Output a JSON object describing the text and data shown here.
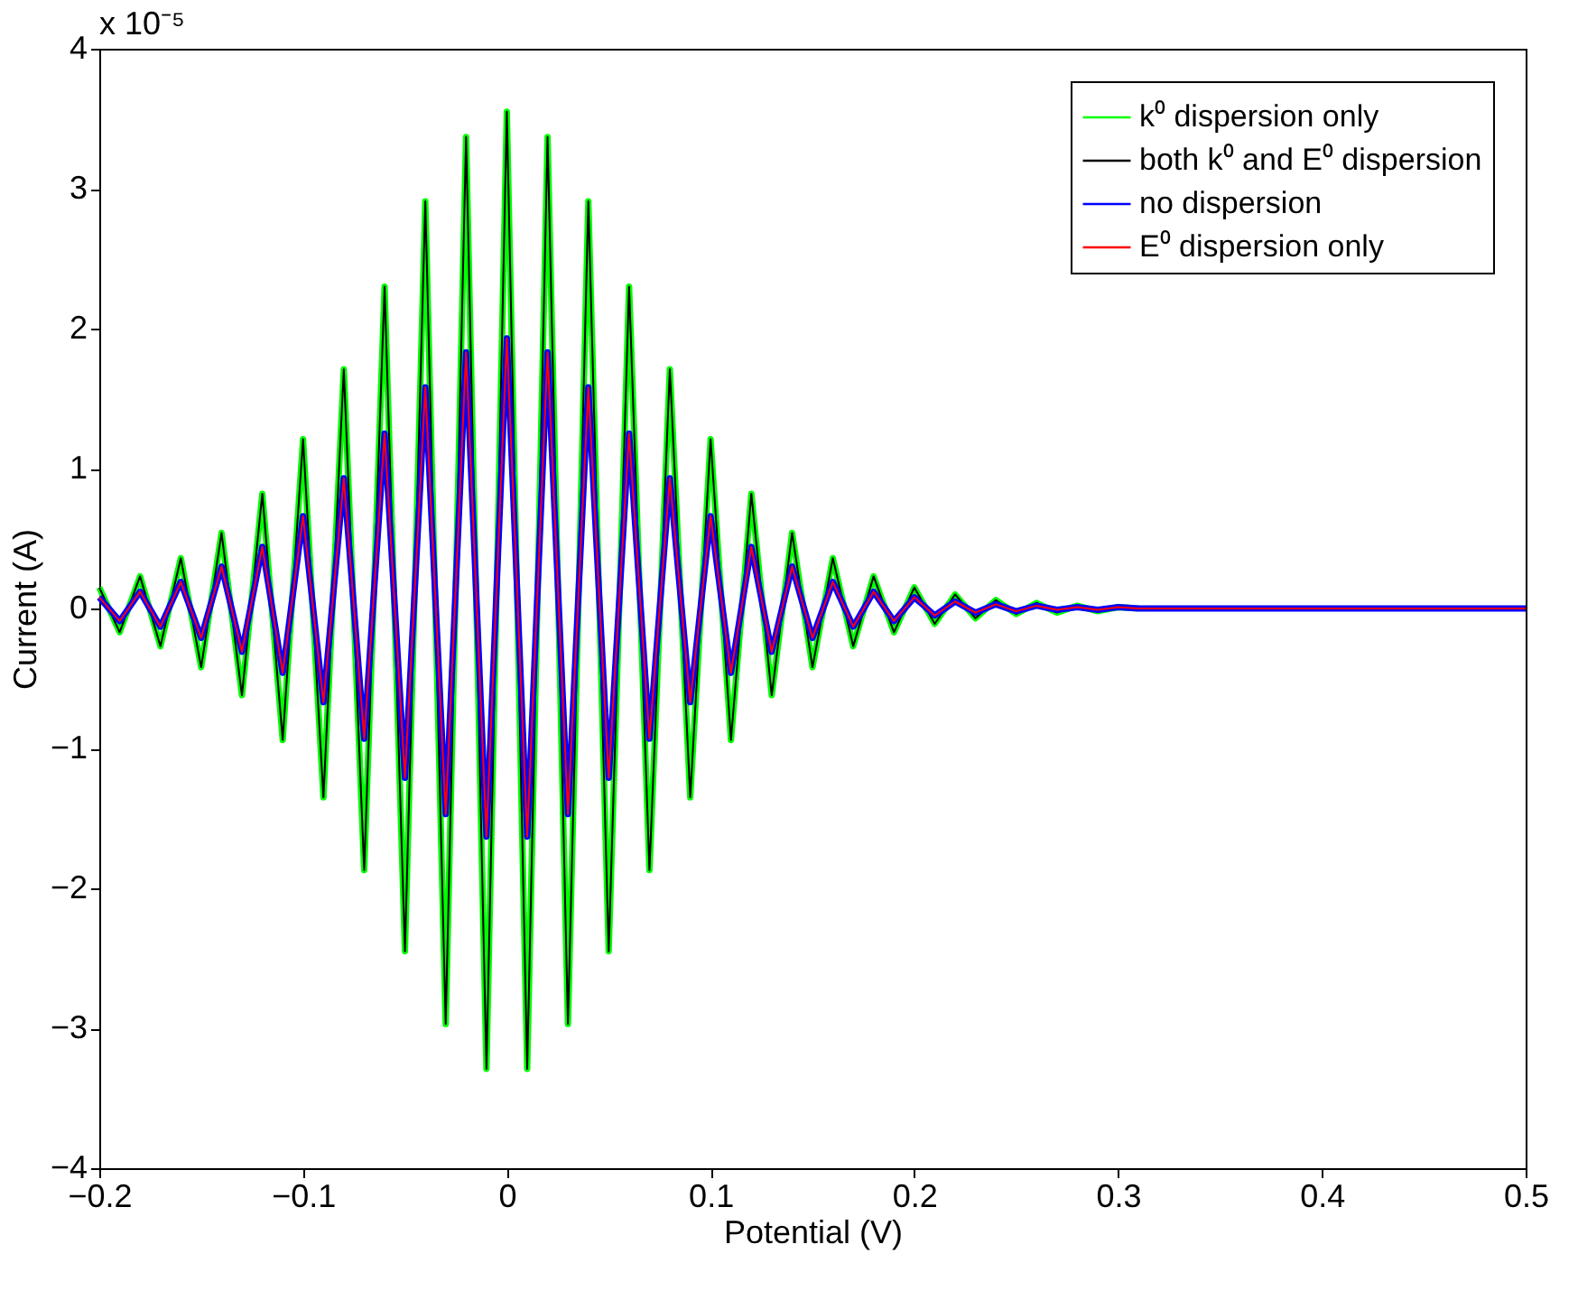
{
  "chart_data": {
    "type": "line",
    "xlabel": "Potential (V)",
    "ylabel": "Current (A)",
    "annotations": [
      "x 10⁻⁵"
    ],
    "x": [
      -0.2,
      -0.19,
      -0.18,
      -0.17,
      -0.16,
      -0.15,
      -0.14,
      -0.13,
      -0.12,
      -0.11,
      -0.1,
      -0.09,
      -0.08,
      -0.07,
      -0.06,
      -0.05,
      -0.04,
      -0.03,
      -0.02,
      -0.01,
      0,
      0.01,
      0.02,
      0.03,
      0.04,
      0.05,
      0.06,
      0.07,
      0.08,
      0.09,
      0.1,
      0.11,
      0.12,
      0.13,
      0.14,
      0.15,
      0.16,
      0.17,
      0.18,
      0.19,
      0.2,
      0.21,
      0.22,
      0.23,
      0.24,
      0.25,
      0.26,
      0.27,
      0.28,
      0.29,
      0.3,
      0.31,
      0.32,
      0.33,
      0.34,
      0.35,
      0.36,
      0.37,
      0.38,
      0.39,
      0.4,
      0.41,
      0.42,
      0.43,
      0.44,
      0.45,
      0.46,
      0.47,
      0.48,
      0.49,
      0.5
    ],
    "series": [
      {
        "name": "k⁰ dispersion only",
        "color": "#00ff00",
        "values": [
          0.15,
          -0.17,
          0.23,
          -0.27,
          0.36,
          -0.42,
          0.54,
          -0.62,
          0.82,
          -0.94,
          1.21,
          -1.35,
          1.71,
          -1.87,
          2.3,
          -2.45,
          2.91,
          -2.97,
          3.37,
          -3.29,
          3.55,
          -3.29,
          3.37,
          -2.97,
          2.91,
          -2.45,
          2.3,
          -1.87,
          1.71,
          -1.35,
          1.21,
          -0.94,
          0.82,
          -0.62,
          0.54,
          -0.42,
          0.36,
          -0.27,
          0.23,
          -0.17,
          0.15,
          -0.11,
          0.1,
          -0.07,
          0.06,
          -0.04,
          0.04,
          -0.03,
          0.02,
          -0.02,
          0.01,
          0,
          null,
          null,
          null,
          null,
          null,
          null,
          null,
          null,
          null,
          null,
          null,
          null,
          null,
          null,
          null,
          null,
          null,
          null,
          null
        ]
      },
      {
        "name": "both k⁰ and E⁰ dispersion",
        "color": "#000000",
        "values": [
          0.15,
          -0.17,
          0.23,
          -0.27,
          0.36,
          -0.42,
          0.54,
          -0.62,
          0.82,
          -0.94,
          1.21,
          -1.35,
          1.71,
          -1.87,
          2.3,
          -2.45,
          2.91,
          -2.97,
          3.37,
          -3.29,
          3.55,
          -3.29,
          3.37,
          -2.97,
          2.91,
          -2.45,
          2.3,
          -1.87,
          1.71,
          -1.35,
          1.21,
          -0.94,
          0.82,
          -0.62,
          0.54,
          -0.42,
          0.36,
          -0.27,
          0.23,
          -0.17,
          0.15,
          -0.11,
          0.1,
          -0.07,
          0.06,
          -0.04,
          0.04,
          -0.03,
          0.02,
          -0.02,
          0.01,
          0,
          0,
          0,
          0,
          0,
          0,
          0,
          0,
          0,
          0,
          0,
          0,
          0,
          0,
          0,
          0,
          0,
          0,
          0,
          0
        ]
      },
      {
        "name": "no dispersion",
        "color": "#0000ff",
        "values": [
          0.08,
          -0.09,
          0.12,
          -0.13,
          0.19,
          -0.21,
          0.3,
          -0.31,
          0.44,
          -0.46,
          0.66,
          -0.67,
          0.93,
          -0.93,
          1.25,
          -1.21,
          1.58,
          -1.47,
          1.83,
          -1.63,
          1.93,
          -1.63,
          1.83,
          -1.47,
          1.58,
          -1.21,
          1.25,
          -0.93,
          0.93,
          -0.67,
          0.66,
          -0.46,
          0.44,
          -0.31,
          0.3,
          -0.21,
          0.19,
          -0.13,
          0.12,
          -0.09,
          0.08,
          -0.05,
          0.05,
          -0.03,
          0.03,
          -0.02,
          0.02,
          -0.01,
          0.01,
          -0.01,
          0.01,
          0,
          0,
          0,
          0,
          0,
          0,
          0,
          0,
          0,
          0,
          0,
          0,
          0,
          0,
          0,
          0,
          0,
          0,
          0,
          0
        ]
      },
      {
        "name": "E⁰ dispersion only",
        "color": "#ff0000",
        "values": [
          0.08,
          -0.09,
          0.12,
          -0.13,
          0.19,
          -0.21,
          0.3,
          -0.31,
          0.44,
          -0.46,
          0.66,
          -0.67,
          0.93,
          -0.93,
          1.25,
          -1.21,
          1.58,
          -1.47,
          1.83,
          -1.63,
          1.93,
          -1.63,
          1.83,
          -1.47,
          1.58,
          -1.21,
          1.25,
          -0.93,
          0.93,
          -0.67,
          0.66,
          -0.46,
          0.44,
          -0.31,
          0.3,
          -0.21,
          0.19,
          -0.13,
          0.12,
          -0.09,
          0.08,
          -0.05,
          0.05,
          -0.03,
          0.03,
          -0.02,
          0.02,
          -0.01,
          0.01,
          -0.01,
          0.01,
          0,
          0,
          0,
          0,
          0,
          0,
          0,
          0,
          0,
          0,
          0,
          0,
          0,
          0,
          0,
          0,
          0,
          0,
          0,
          0
        ]
      }
    ],
    "xlim": [
      -0.2,
      0.5
    ],
    "xticks": [
      -0.2,
      -0.1,
      0,
      0.1,
      0.2,
      0.3,
      0.4,
      0.5
    ],
    "ylim": [
      -4,
      4
    ],
    "yticks": [
      -4,
      -3,
      -2,
      -1,
      0,
      1,
      2,
      3,
      4
    ],
    "grid": false,
    "legend": "top right",
    "line_style": "solid",
    "marker": "none"
  }
}
